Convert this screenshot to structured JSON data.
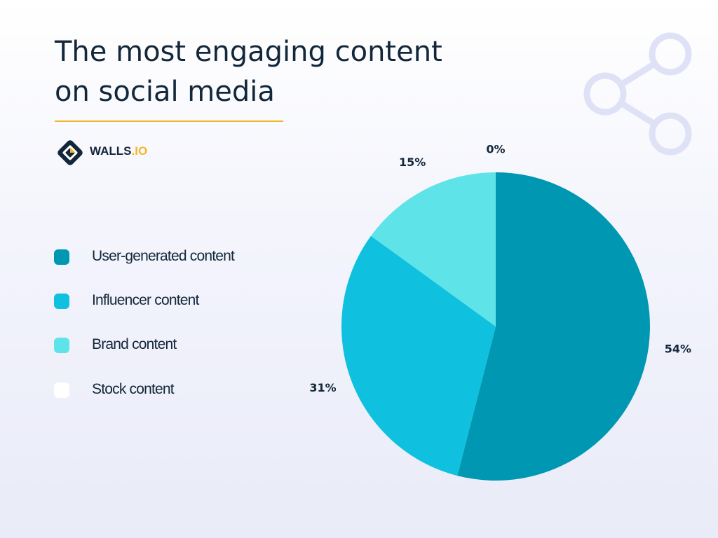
{
  "header": {
    "title_line1": "The most engaging content",
    "title_line2": "on social media",
    "underline_color": "#f0b72b"
  },
  "brand": {
    "name": "WALLS",
    "suffix": ".IO",
    "icon": "walls-io-logo-icon"
  },
  "decoration": {
    "icon": "share-icon",
    "color": "#dfe2f6"
  },
  "chart_data": {
    "type": "pie",
    "title": "The most engaging content on social media",
    "legend_position": "left",
    "slices": [
      {
        "label": "User-generated content",
        "value": 54,
        "value_label": "54%",
        "color": "#0097b2"
      },
      {
        "label": "Influencer content",
        "value": 31,
        "value_label": "31%",
        "color": "#0fc1de"
      },
      {
        "label": "Brand content",
        "value": 15,
        "value_label": "15%",
        "color": "#5ee3e8"
      },
      {
        "label": "Stock content",
        "value": 0,
        "value_label": "0%",
        "color": "#ffffff"
      }
    ]
  }
}
